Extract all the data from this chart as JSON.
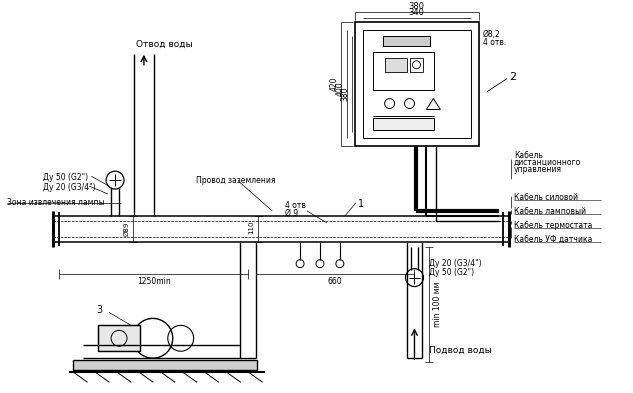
{
  "bg_color": "#ffffff",
  "line_color": "#000000",
  "annotations": {
    "otv_vody": "Отвод воды",
    "du50_top": "Ду 50 (G2\")",
    "du20_top": "Ду 20 (G3/4\")",
    "zona": "Зона извлечения лампы",
    "provod": "Провод заземления",
    "otv1": "4 отв",
    "d9": "Ø 9",
    "num1": "1",
    "num2": "2",
    "num3": "3",
    "d89": "Ø89",
    "d110": "110",
    "dim1250": "1250min",
    "dim660": "660",
    "du20_bot": "Ду 20 (G3/4\")",
    "du50_bot": "Ду 50 (G2\")",
    "podvod": "Подвод воды",
    "min100": "min 100 мм",
    "kabel1": "Кабель",
    "kabel1b": "дистанционного",
    "kabel1c": "управления",
    "kabel2": "Кабель силовой",
    "kabel3": "Кабель ламповый",
    "kabel4": "Кабель термостата",
    "kabel5": "Кабель УФ датчика",
    "dim380": "380",
    "dim340": "340",
    "dim420": "420",
    "dim400": "400",
    "dim380b": "380",
    "hole_d": "Ø8,2",
    "hole_n": "4 отв."
  }
}
